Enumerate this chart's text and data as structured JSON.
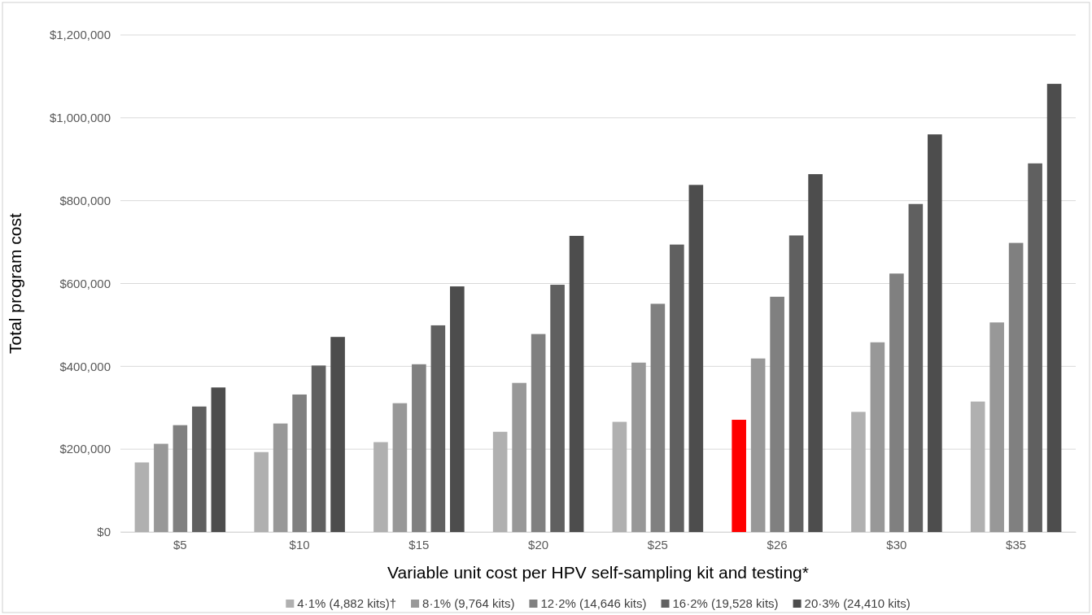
{
  "chart_data": {
    "type": "bar",
    "xlabel": "Variable unit cost per HPV self-sampling kit and testing*",
    "ylabel": "Total program cost",
    "categories": [
      "$5",
      "$10",
      "$15",
      "$20",
      "$25",
      "$26",
      "$30",
      "$35"
    ],
    "series": [
      {
        "name": "4·1% (4,882 kits)†",
        "color": "#b0b0b0",
        "colors": [
          "#b0b0b0",
          "#b0b0b0",
          "#b0b0b0",
          "#b0b0b0",
          "#b0b0b0",
          "#ff0000",
          "#b0b0b0",
          "#b0b0b0"
        ],
        "values": [
          168000,
          193000,
          217000,
          242000,
          266000,
          271000,
          290000,
          315000
        ]
      },
      {
        "name": "8·1% (9,764 kits)",
        "color": "#989898",
        "values": [
          213000,
          262000,
          311000,
          360000,
          409000,
          419000,
          458000,
          506000
        ]
      },
      {
        "name": "12·2% (14,646 kits)",
        "color": "#808080",
        "values": [
          258000,
          332000,
          405000,
          478000,
          551000,
          568000,
          624000,
          698000
        ]
      },
      {
        "name": "16·2% (19,528 kits)",
        "color": "#606060",
        "values": [
          303000,
          402000,
          499000,
          597000,
          694000,
          716000,
          792000,
          890000
        ]
      },
      {
        "name": "20·3% (24,410 kits)",
        "color": "#4d4d4d",
        "values": [
          349000,
          471000,
          593000,
          715000,
          838000,
          864000,
          960000,
          1082000
        ]
      }
    ],
    "ylim": [
      0,
      1200000
    ],
    "yticks": [
      {
        "value": 0,
        "label": "$0"
      },
      {
        "value": 200000,
        "label": "$200,000"
      },
      {
        "value": 400000,
        "label": "$400,000"
      },
      {
        "value": 600000,
        "label": "$600,000"
      },
      {
        "value": 800000,
        "label": "$800,000"
      },
      {
        "value": 1000000,
        "label": "$1,000,000"
      },
      {
        "value": 1200000,
        "label": "$1,200,000"
      }
    ],
    "grid": "y",
    "legend": "bottom"
  }
}
